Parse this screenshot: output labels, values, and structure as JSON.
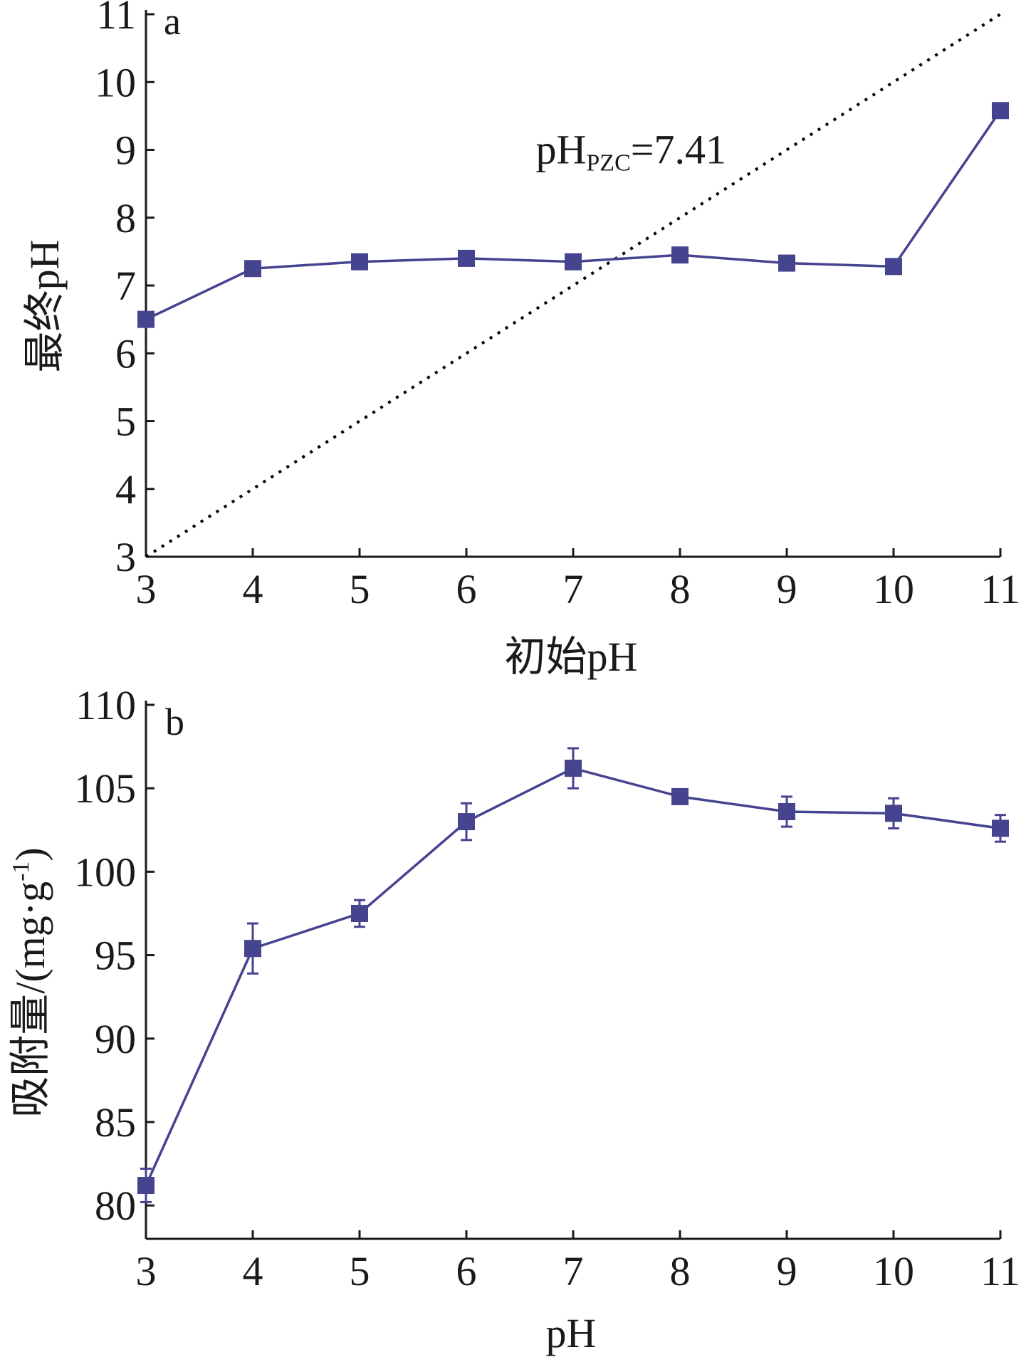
{
  "chart_data": [
    {
      "panel": "a",
      "type": "line",
      "xlabel": "初始pH",
      "ylabel": "最终pH",
      "xlim": [
        3,
        11
      ],
      "ylim": [
        3,
        11
      ],
      "xticks": [
        3,
        4,
        5,
        6,
        7,
        8,
        9,
        10,
        11
      ],
      "yticks": [
        3,
        4,
        5,
        6,
        7,
        8,
        9,
        10,
        11
      ],
      "x": [
        3,
        4,
        5,
        6,
        7,
        8,
        9,
        10,
        11
      ],
      "series": [
        {
          "values": [
            6.5,
            7.25,
            7.35,
            7.4,
            7.35,
            7.45,
            7.33,
            7.28,
            9.58
          ],
          "color": "#46438f",
          "marker": "square"
        }
      ],
      "reference_line": {
        "style": "dotted",
        "color": "#000000",
        "x": [
          3,
          11
        ],
        "y": [
          3,
          11
        ]
      },
      "annotation": {
        "main": "pH",
        "sub": "PZC",
        "tail": "=7.41",
        "x": 6.65,
        "y": 8.8
      }
    },
    {
      "panel": "b",
      "type": "line",
      "xlabel": "pH",
      "ylabel": "吸附量/(mg·g",
      "ylabel_sup": "-1",
      "ylabel_tail": ")",
      "xlim": [
        3,
        11
      ],
      "ylim": [
        78,
        110
      ],
      "xticks": [
        3,
        4,
        5,
        6,
        7,
        8,
        9,
        10,
        11
      ],
      "yticks": [
        80,
        85,
        90,
        95,
        100,
        105,
        110
      ],
      "x": [
        3,
        4,
        5,
        6,
        7,
        8,
        9,
        10,
        11
      ],
      "series": [
        {
          "values": [
            81.2,
            95.4,
            97.5,
            103.0,
            106.2,
            104.5,
            103.6,
            103.5,
            102.6
          ],
          "errors": [
            1.0,
            1.5,
            0.8,
            1.1,
            1.2,
            0.2,
            0.9,
            0.9,
            0.8
          ],
          "color": "#46438f",
          "marker": "square"
        }
      ]
    }
  ]
}
